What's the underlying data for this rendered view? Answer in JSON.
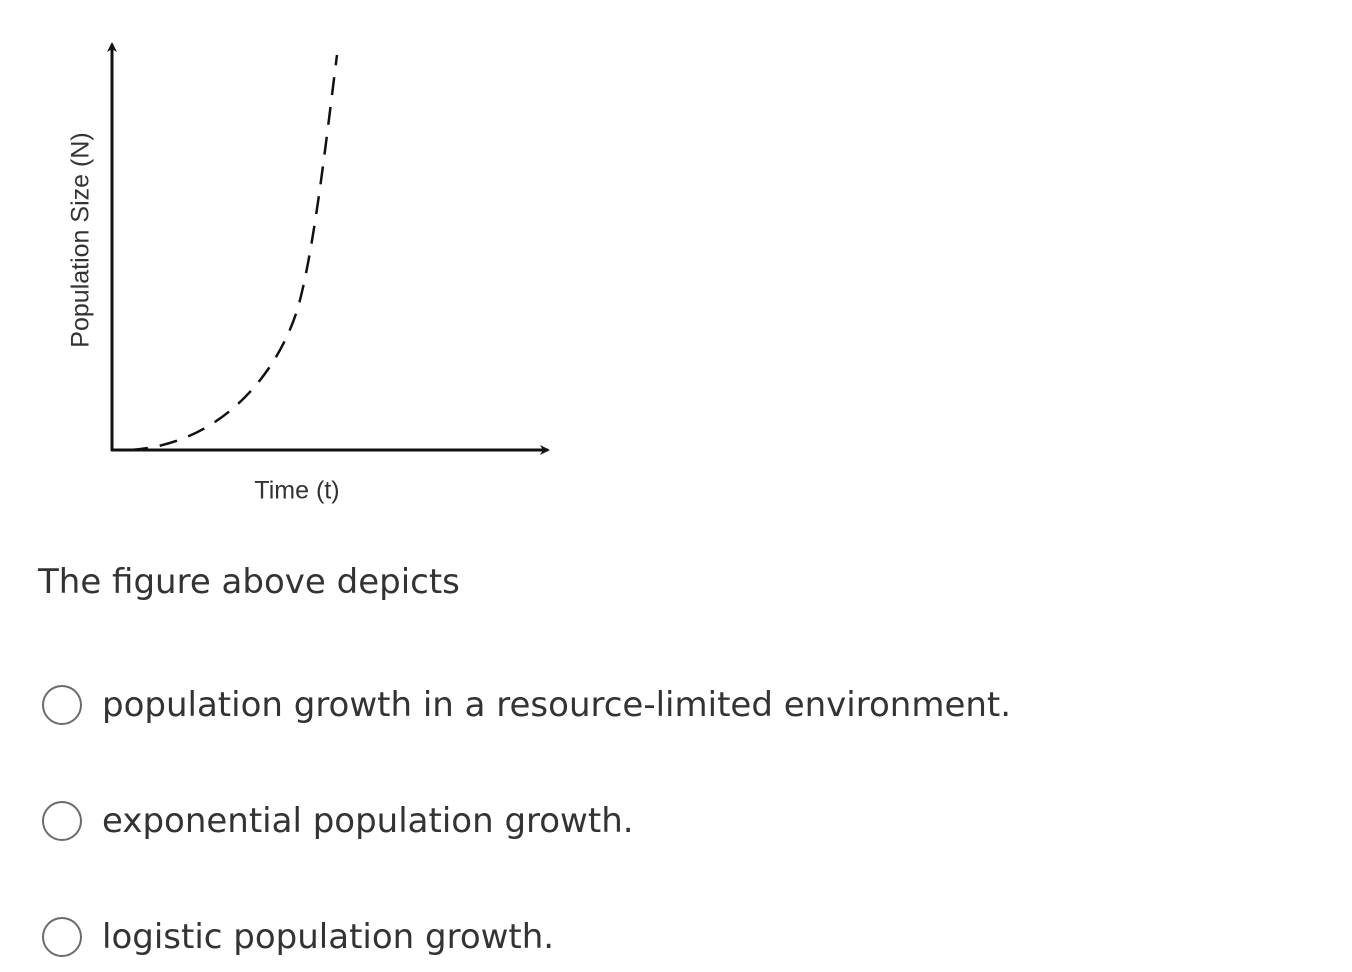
{
  "figure": {
    "y_label": "Population Size (N)",
    "x_label": "Time (t)"
  },
  "question": "The figure above depicts",
  "options": [
    "population growth in a resource-limited environment.",
    "exponential population growth.",
    "logistic population growth."
  ]
}
